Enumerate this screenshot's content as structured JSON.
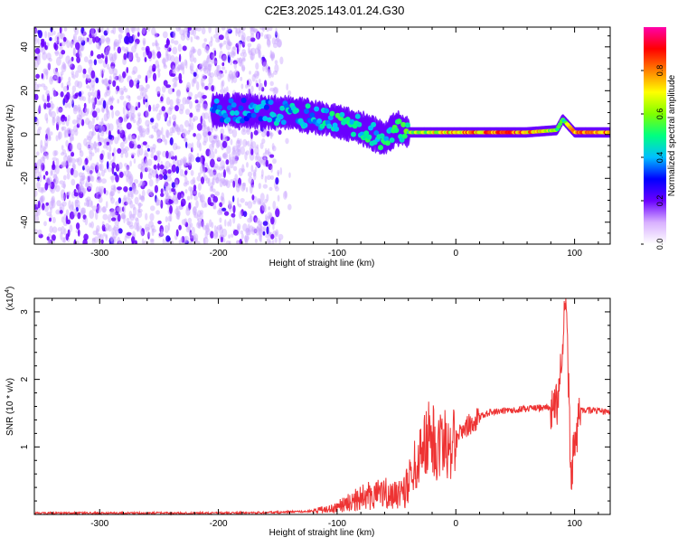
{
  "title": "C2E3.2025.143.01.24.G30",
  "chart_data": [
    {
      "type": "heatmap",
      "xlabel": "Height of straight line (km)",
      "ylabel": "Frequency (Hz)",
      "xlim": [
        -355,
        130
      ],
      "ylim": [
        -50,
        49
      ],
      "xticks": [
        -300,
        -200,
        -100,
        0,
        100
      ],
      "yticks": [
        -40,
        -20,
        0,
        20,
        40
      ],
      "grid": false,
      "colorbar": {
        "label": "Normalized spectral amplitude",
        "range": [
          0,
          1
        ],
        "ticks": [
          "0.0",
          "0.2",
          "0.4",
          "0.6",
          "0.8"
        ],
        "colors": [
          "#ffffff",
          "#d8b0ff",
          "#6a00ff",
          "#0000ff",
          "#00bfff",
          "#00ff80",
          "#80ff00",
          "#ffff00",
          "#ff8000",
          "#ff0000",
          "#ff00aa"
        ]
      },
      "noise_region_x": [
        -355,
        -150
      ],
      "track": [
        {
          "x": -205,
          "y": 11,
          "amp": 0.4
        },
        {
          "x": -180,
          "y": 11,
          "amp": 0.4
        },
        {
          "x": -160,
          "y": 10,
          "amp": 0.42
        },
        {
          "x": -140,
          "y": 10,
          "amp": 0.42
        },
        {
          "x": -120,
          "y": 8,
          "amp": 0.45
        },
        {
          "x": -100,
          "y": 6,
          "amp": 0.5
        },
        {
          "x": -80,
          "y": 3,
          "amp": 0.5
        },
        {
          "x": -60,
          "y": -2,
          "amp": 0.48
        },
        {
          "x": -50,
          "y": 3,
          "amp": 0.55
        },
        {
          "x": -40,
          "y": 1,
          "amp": 0.6
        },
        {
          "x": -20,
          "y": 1,
          "amp": 0.72
        },
        {
          "x": 0,
          "y": 1,
          "amp": 0.8
        },
        {
          "x": 30,
          "y": 1,
          "amp": 0.85
        },
        {
          "x": 60,
          "y": 1,
          "amp": 0.85
        },
        {
          "x": 85,
          "y": 2,
          "amp": 0.6
        },
        {
          "x": 90,
          "y": 7,
          "amp": 0.55
        },
        {
          "x": 100,
          "y": 1,
          "amp": 0.8
        },
        {
          "x": 130,
          "y": 1,
          "amp": 0.85
        }
      ]
    },
    {
      "type": "line",
      "xlabel": "Height of straight line (km)",
      "ylabel": "SNR (10 * v/v)",
      "scale_note": "(x10",
      "scale_exp": "4",
      "xlim": [
        -355,
        130
      ],
      "ylim": [
        0,
        3.2
      ],
      "xticks": [
        -300,
        -200,
        -100,
        0,
        100
      ],
      "yticks": [
        1,
        2,
        3
      ],
      "color": "#ee3333",
      "envelope": [
        {
          "x": -355,
          "y": 0.02
        },
        {
          "x": -200,
          "y": 0.02
        },
        {
          "x": -150,
          "y": 0.03
        },
        {
          "x": -120,
          "y": 0.05
        },
        {
          "x": -100,
          "y": 0.12
        },
        {
          "x": -80,
          "y": 0.3
        },
        {
          "x": -60,
          "y": 0.35
        },
        {
          "x": -50,
          "y": 0.3
        },
        {
          "x": -40,
          "y": 0.5
        },
        {
          "x": -30,
          "y": 0.9
        },
        {
          "x": -25,
          "y": 1.1
        },
        {
          "x": -15,
          "y": 1.05
        },
        {
          "x": -5,
          "y": 1.05
        },
        {
          "x": 0,
          "y": 1.15
        },
        {
          "x": 10,
          "y": 1.3
        },
        {
          "x": 20,
          "y": 1.45
        },
        {
          "x": 30,
          "y": 1.52
        },
        {
          "x": 50,
          "y": 1.55
        },
        {
          "x": 70,
          "y": 1.58
        },
        {
          "x": 85,
          "y": 1.6
        },
        {
          "x": 93,
          "y": 3.2
        },
        {
          "x": 97,
          "y": 0.6
        },
        {
          "x": 105,
          "y": 1.55
        },
        {
          "x": 130,
          "y": 1.52
        }
      ]
    }
  ]
}
